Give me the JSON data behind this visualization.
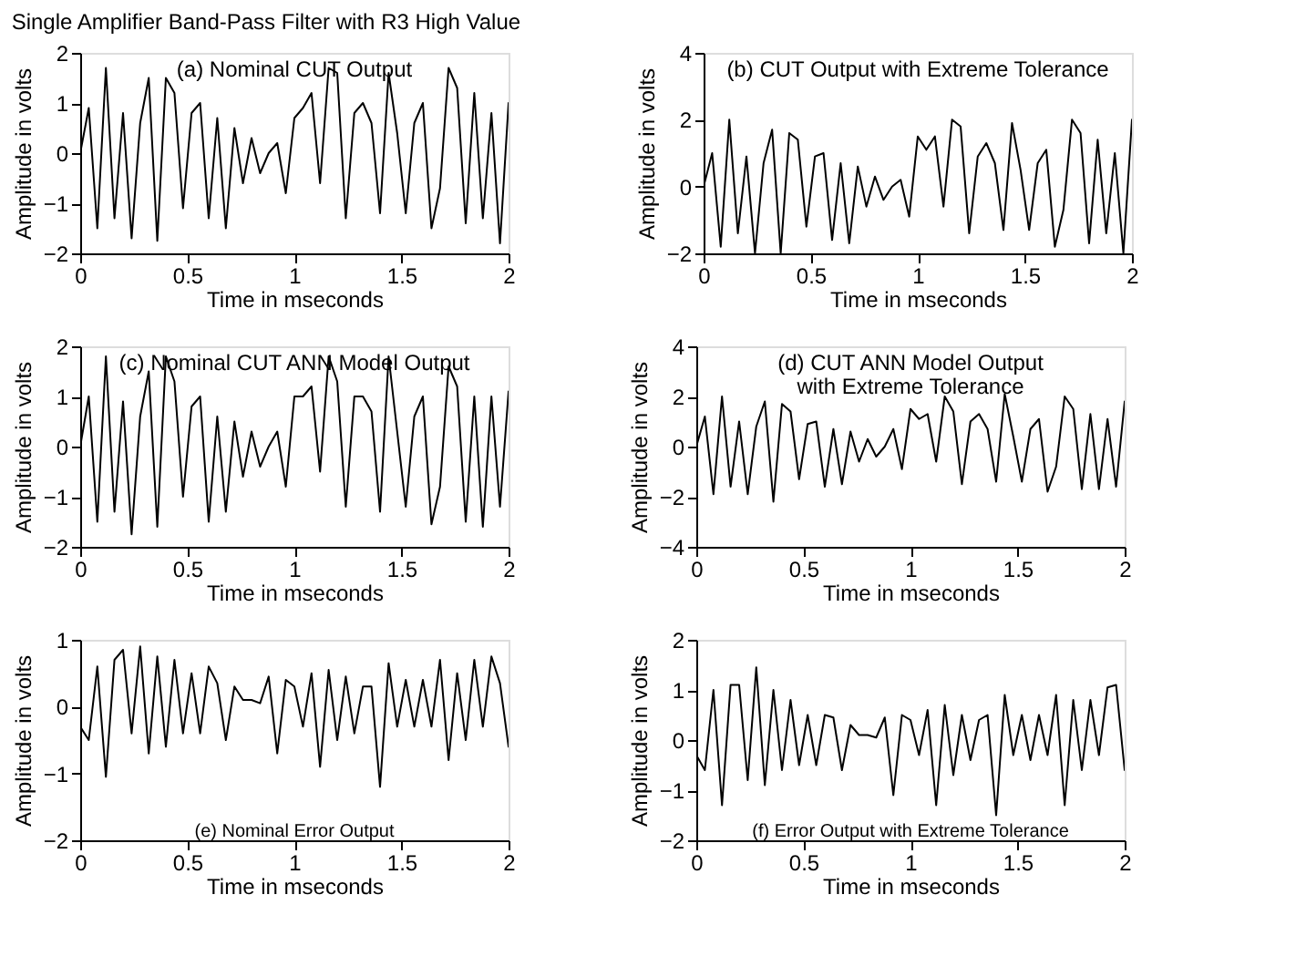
{
  "chart_data": [
    {
      "type": "line",
      "title": "Single Amplifier Band-Pass Filter with R3 High Value",
      "xlabel": "Time in mseconds",
      "ylabel": "Amplitude in volts",
      "annotations": [
        "(a) Nominal CUT Output"
      ],
      "xlim": [
        0,
        2
      ],
      "xticks": [
        0,
        0.5,
        1,
        1.5,
        2
      ],
      "ylim": [
        -2,
        2
      ],
      "yticks": [
        -2,
        -1,
        0,
        1,
        2
      ],
      "grid": false,
      "x": [
        0,
        0.04,
        0.08,
        0.12,
        0.16,
        0.2,
        0.24,
        0.28,
        0.32,
        0.36,
        0.4,
        0.44,
        0.48,
        0.52,
        0.56,
        0.6,
        0.64,
        0.68,
        0.72,
        0.76,
        0.8,
        0.84,
        0.88,
        0.92,
        0.96,
        1.0,
        1.04,
        1.08,
        1.12,
        1.16,
        1.2,
        1.24,
        1.28,
        1.32,
        1.36,
        1.4,
        1.44,
        1.48,
        1.52,
        1.56,
        1.6,
        1.64,
        1.68,
        1.72,
        1.76,
        1.8,
        1.84,
        1.88,
        1.92,
        1.96,
        2.0
      ],
      "series": [
        {
          "color": "#000000",
          "values": [
            0,
            0.9,
            -1.5,
            1.7,
            -1.3,
            0.8,
            -1.7,
            0.6,
            1.5,
            -1.75,
            1.5,
            1.2,
            -1.1,
            0.8,
            1.0,
            -1.3,
            0.7,
            -1.5,
            0.5,
            -0.6,
            0.3,
            -0.4,
            0,
            0.2,
            -0.8,
            0.7,
            0.9,
            1.2,
            -0.6,
            1.7,
            1.6,
            -1.3,
            0.8,
            1.0,
            0.6,
            -1.2,
            1.6,
            0.4,
            -1.2,
            0.6,
            1.0,
            -1.5,
            -0.7,
            1.7,
            1.3,
            -1.4,
            1.2,
            -1.3,
            0.8,
            -1.8,
            1.0
          ]
        }
      ]
    },
    {
      "type": "line",
      "xlabel": "Time in mseconds",
      "ylabel": "Amplitude in volts",
      "annotations": [
        "(b) CUT Output with Extreme Tolerance"
      ],
      "xlim": [
        0,
        2
      ],
      "xticks": [
        0,
        0.5,
        1,
        1.5,
        2
      ],
      "ylim": [
        -2,
        4
      ],
      "yticks": [
        -2,
        0,
        2,
        4
      ],
      "grid": false,
      "x": [
        0,
        0.04,
        0.08,
        0.12,
        0.16,
        0.2,
        0.24,
        0.28,
        0.32,
        0.36,
        0.4,
        0.44,
        0.48,
        0.52,
        0.56,
        0.6,
        0.64,
        0.68,
        0.72,
        0.76,
        0.8,
        0.84,
        0.88,
        0.92,
        0.96,
        1.0,
        1.04,
        1.08,
        1.12,
        1.16,
        1.2,
        1.24,
        1.28,
        1.32,
        1.36,
        1.4,
        1.44,
        1.48,
        1.52,
        1.56,
        1.6,
        1.64,
        1.68,
        1.72,
        1.76,
        1.8,
        1.84,
        1.88,
        1.92,
        1.96,
        2.0
      ],
      "series": [
        {
          "color": "#000000",
          "values": [
            0,
            1.0,
            -1.8,
            2.0,
            -1.4,
            0.9,
            -2.0,
            0.7,
            1.7,
            -2.0,
            1.6,
            1.4,
            -1.2,
            0.9,
            1.0,
            -1.6,
            0.7,
            -1.7,
            0.6,
            -0.6,
            0.3,
            -0.4,
            0,
            0.2,
            -0.9,
            1.5,
            1.1,
            1.5,
            -0.6,
            2.0,
            1.8,
            -1.4,
            0.9,
            1.3,
            0.7,
            -1.3,
            1.9,
            0.5,
            -1.3,
            0.7,
            1.1,
            -1.8,
            -0.7,
            2.0,
            1.6,
            -1.7,
            1.4,
            -1.4,
            1.0,
            -2.0,
            2.0
          ]
        }
      ]
    },
    {
      "type": "line",
      "xlabel": "Time in mseconds",
      "ylabel": "Amplitude in volts",
      "annotations": [
        "(c) Nominal CUT ANN Model Output"
      ],
      "xlim": [
        0,
        2
      ],
      "xticks": [
        0,
        0.5,
        1,
        1.5,
        2
      ],
      "ylim": [
        -2,
        2
      ],
      "yticks": [
        -2,
        -1,
        0,
        1,
        2
      ],
      "grid": false,
      "x": [
        0,
        0.04,
        0.08,
        0.12,
        0.16,
        0.2,
        0.24,
        0.28,
        0.32,
        0.36,
        0.4,
        0.44,
        0.48,
        0.52,
        0.56,
        0.6,
        0.64,
        0.68,
        0.72,
        0.76,
        0.8,
        0.84,
        0.88,
        0.92,
        0.96,
        1.0,
        1.04,
        1.08,
        1.12,
        1.16,
        1.2,
        1.24,
        1.28,
        1.32,
        1.36,
        1.4,
        1.44,
        1.48,
        1.52,
        1.56,
        1.6,
        1.64,
        1.68,
        1.72,
        1.76,
        1.8,
        1.84,
        1.88,
        1.92,
        1.96,
        2.0
      ],
      "series": [
        {
          "color": "#000000",
          "values": [
            0,
            1.0,
            -1.5,
            1.8,
            -1.3,
            0.9,
            -1.75,
            0.6,
            1.5,
            -1.6,
            1.8,
            1.3,
            -1.0,
            0.8,
            1.0,
            -1.5,
            0.6,
            -1.3,
            0.5,
            -0.6,
            0.3,
            -0.4,
            0,
            0.3,
            -0.8,
            1.0,
            1.0,
            1.2,
            -0.5,
            1.8,
            1.3,
            -1.2,
            1.0,
            1.0,
            0.7,
            -1.3,
            1.8,
            0.3,
            -1.2,
            0.6,
            1.0,
            -1.55,
            -0.8,
            1.6,
            1.2,
            -1.5,
            1.0,
            -1.6,
            1.0,
            -1.2,
            1.1
          ]
        }
      ]
    },
    {
      "type": "line",
      "xlabel": "Time in mseconds",
      "ylabel": "Amplitude in volts",
      "annotations": [
        "(d) CUT ANN Model Output\nwith Extreme Tolerance"
      ],
      "xlim": [
        0,
        2
      ],
      "xticks": [
        0,
        0.5,
        1,
        1.5,
        2
      ],
      "ylim": [
        -4,
        4
      ],
      "yticks": [
        -4,
        -2,
        0,
        2,
        4
      ],
      "grid": false,
      "x": [
        0,
        0.04,
        0.08,
        0.12,
        0.16,
        0.2,
        0.24,
        0.28,
        0.32,
        0.36,
        0.4,
        0.44,
        0.48,
        0.52,
        0.56,
        0.6,
        0.64,
        0.68,
        0.72,
        0.76,
        0.8,
        0.84,
        0.88,
        0.92,
        0.96,
        1.0,
        1.04,
        1.08,
        1.12,
        1.16,
        1.2,
        1.24,
        1.28,
        1.32,
        1.36,
        1.4,
        1.44,
        1.48,
        1.52,
        1.56,
        1.6,
        1.64,
        1.68,
        1.72,
        1.76,
        1.8,
        1.84,
        1.88,
        1.92,
        1.96,
        2.0
      ],
      "series": [
        {
          "color": "#000000",
          "values": [
            0,
            1.2,
            -1.9,
            2.0,
            -1.6,
            1.0,
            -1.9,
            0.8,
            1.8,
            -2.2,
            1.7,
            1.4,
            -1.3,
            0.9,
            1.0,
            -1.6,
            0.7,
            -1.5,
            0.6,
            -0.6,
            0.3,
            -0.4,
            0,
            0.7,
            -0.9,
            1.5,
            1.1,
            1.3,
            -0.6,
            2.0,
            1.4,
            -1.5,
            1.0,
            1.3,
            0.7,
            -1.4,
            2.1,
            0.4,
            -1.4,
            0.7,
            1.1,
            -1.8,
            -0.8,
            2.0,
            1.5,
            -1.7,
            1.3,
            -1.7,
            1.1,
            -1.6,
            1.8
          ]
        }
      ]
    },
    {
      "type": "line",
      "xlabel": "Time in mseconds",
      "ylabel": "Amplitude in volts",
      "annotations": [
        "(e) Nominal Error Output"
      ],
      "xlim": [
        0,
        2
      ],
      "xticks": [
        0,
        0.5,
        1,
        1.5,
        2
      ],
      "ylim": [
        -2,
        1
      ],
      "yticks": [
        -2,
        -1,
        0,
        1
      ],
      "grid": false,
      "x": [
        0,
        0.04,
        0.08,
        0.12,
        0.16,
        0.2,
        0.24,
        0.28,
        0.32,
        0.36,
        0.4,
        0.44,
        0.48,
        0.52,
        0.56,
        0.6,
        0.64,
        0.68,
        0.72,
        0.76,
        0.8,
        0.84,
        0.88,
        0.92,
        0.96,
        1.0,
        1.04,
        1.08,
        1.12,
        1.16,
        1.2,
        1.24,
        1.28,
        1.32,
        1.36,
        1.4,
        1.44,
        1.48,
        1.52,
        1.56,
        1.6,
        1.64,
        1.68,
        1.72,
        1.76,
        1.8,
        1.84,
        1.88,
        1.92,
        1.96,
        2.0
      ],
      "series": [
        {
          "color": "#000000",
          "values": [
            -0.3,
            -0.5,
            0.6,
            -1.05,
            0.7,
            0.85,
            -0.4,
            0.9,
            -0.7,
            0.75,
            -0.6,
            0.7,
            -0.4,
            0.5,
            -0.4,
            0.6,
            0.35,
            -0.5,
            0.3,
            0.1,
            0.1,
            0.05,
            0.45,
            -0.7,
            0.4,
            0.3,
            -0.3,
            0.5,
            -0.9,
            0.55,
            -0.5,
            0.45,
            -0.4,
            0.3,
            0.3,
            -1.2,
            0.65,
            -0.3,
            0.4,
            -0.3,
            0.4,
            -0.3,
            0.7,
            -0.8,
            0.5,
            -0.5,
            0.7,
            -0.3,
            0.75,
            0.35,
            -0.6
          ]
        }
      ]
    },
    {
      "type": "line",
      "xlabel": "Time in mseconds",
      "ylabel": "Amplitude in volts",
      "annotations": [
        "(f) Error Output with Extreme Tolerance"
      ],
      "xlim": [
        0,
        2
      ],
      "xticks": [
        0,
        0.5,
        1,
        1.5,
        2
      ],
      "ylim": [
        -2,
        2
      ],
      "yticks": [
        -2,
        -1,
        0,
        1,
        2
      ],
      "grid": false,
      "x": [
        0,
        0.04,
        0.08,
        0.12,
        0.16,
        0.2,
        0.24,
        0.28,
        0.32,
        0.36,
        0.4,
        0.44,
        0.48,
        0.52,
        0.56,
        0.6,
        0.64,
        0.68,
        0.72,
        0.76,
        0.8,
        0.84,
        0.88,
        0.92,
        0.96,
        1.0,
        1.04,
        1.08,
        1.12,
        1.16,
        1.2,
        1.24,
        1.28,
        1.32,
        1.36,
        1.4,
        1.44,
        1.48,
        1.52,
        1.56,
        1.6,
        1.64,
        1.68,
        1.72,
        1.76,
        1.8,
        1.84,
        1.88,
        1.92,
        1.96,
        2.0
      ],
      "series": [
        {
          "color": "#000000",
          "values": [
            -0.3,
            -0.6,
            1.0,
            -1.3,
            1.1,
            1.1,
            -0.8,
            1.45,
            -0.9,
            1.0,
            -0.6,
            0.8,
            -0.5,
            0.5,
            -0.5,
            0.5,
            0.45,
            -0.6,
            0.3,
            0.1,
            0.1,
            0.05,
            0.45,
            -1.1,
            0.5,
            0.4,
            -0.3,
            0.6,
            -1.3,
            0.7,
            -0.7,
            0.5,
            -0.4,
            0.4,
            0.5,
            -1.5,
            0.9,
            -0.3,
            0.5,
            -0.4,
            0.5,
            -0.3,
            0.9,
            -1.3,
            0.8,
            -0.6,
            0.8,
            -0.3,
            1.05,
            1.1,
            -0.6
          ]
        }
      ]
    }
  ]
}
